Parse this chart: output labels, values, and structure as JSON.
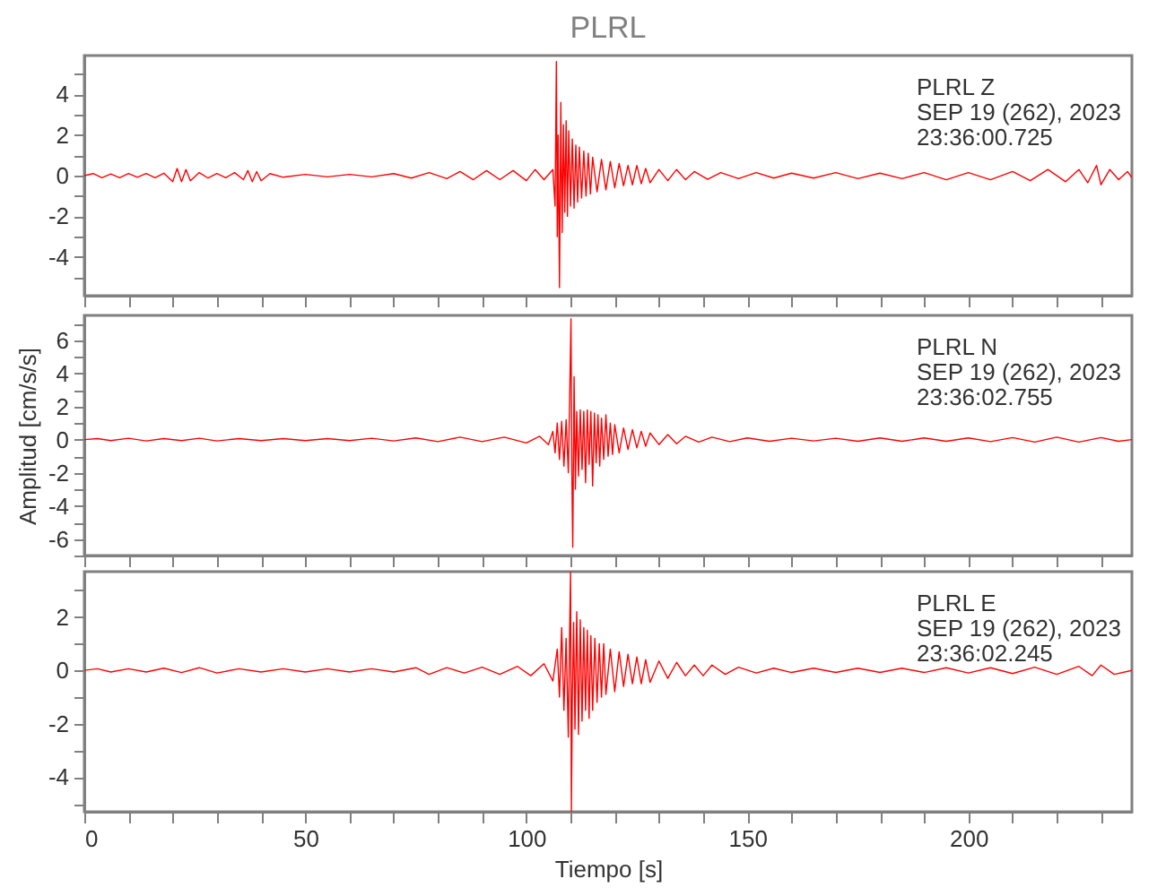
{
  "chart_data": [
    {
      "type": "line",
      "title": "PLRL",
      "color": "#ff0000",
      "grid": false,
      "tick_labels": "y",
      "annotations": [
        "PLRL   Z",
        "SEP 19 (262), 2023",
        "23:36:00.725"
      ],
      "xlim": [
        0,
        237
      ],
      "xticks": [
        0,
        {
          "value": 10,
          "label": null
        },
        {
          "value": 20,
          "label": null
        },
        {
          "value": 30,
          "label": null
        },
        {
          "value": 40,
          "label": null
        },
        50,
        {
          "value": 60,
          "label": null
        },
        {
          "value": 70,
          "label": null
        },
        {
          "value": 80,
          "label": null
        },
        {
          "value": 90,
          "label": null
        },
        100,
        {
          "value": 110,
          "label": null
        },
        {
          "value": 120,
          "label": null
        },
        {
          "value": 130,
          "label": null
        },
        {
          "value": 140,
          "label": null
        },
        150,
        {
          "value": 160,
          "label": null
        },
        {
          "value": 170,
          "label": null
        },
        {
          "value": 180,
          "label": null
        },
        {
          "value": 190,
          "label": null
        },
        200,
        {
          "value": 210,
          "label": null
        },
        {
          "value": 220,
          "label": null
        },
        {
          "value": 230,
          "label": null
        }
      ],
      "ylim": [
        -5.9,
        5.9
      ],
      "yticks": [
        {
          "value": -5,
          "label": null
        },
        -4,
        {
          "value": -3,
          "label": null
        },
        -2,
        {
          "value": -1,
          "label": null
        },
        0,
        {
          "value": 1,
          "label": null
        },
        2,
        {
          "value": 3,
          "label": null
        },
        4,
        {
          "value": 5,
          "label": null
        }
      ],
      "x": [
        0,
        2,
        4,
        6,
        8,
        10,
        12,
        14,
        16,
        18,
        20,
        21,
        22,
        23,
        24,
        26,
        28,
        30,
        32,
        34,
        36,
        37,
        38,
        39,
        40,
        42,
        45,
        50,
        55,
        60,
        65,
        70,
        74,
        78,
        82,
        85,
        88,
        91,
        94,
        97,
        100,
        102,
        104,
        106,
        106.5,
        106.8,
        107,
        107.2,
        107.5,
        107.8,
        108.1,
        108.4,
        108.7,
        109,
        109.3,
        109.6,
        110,
        110.4,
        110.8,
        111.2,
        111.6,
        112,
        112.5,
        113,
        113.5,
        114,
        114.5,
        115,
        116,
        117,
        118,
        119,
        120,
        121,
        122,
        123,
        124,
        125,
        126,
        127,
        128,
        130,
        132,
        134,
        136,
        138,
        141,
        144,
        148,
        152,
        156,
        160,
        165,
        170,
        175,
        180,
        185,
        190,
        195,
        200,
        205,
        210,
        214,
        218,
        222,
        225,
        227,
        229,
        230,
        232,
        234,
        236,
        237
      ],
      "values": [
        0,
        0.1,
        -0.1,
        0.08,
        -0.1,
        0.1,
        -0.08,
        0.1,
        -0.1,
        0.12,
        -0.3,
        0.35,
        -0.3,
        0.3,
        -0.25,
        0.15,
        -0.12,
        0.1,
        -0.1,
        0.15,
        -0.2,
        0.25,
        -0.3,
        0.2,
        -0.25,
        0.1,
        -0.08,
        0.06,
        -0.06,
        0.06,
        -0.06,
        0.1,
        -0.12,
        0.15,
        -0.15,
        0.2,
        -0.2,
        0.25,
        -0.2,
        0.25,
        -0.25,
        0.3,
        -0.2,
        0.3,
        -1.5,
        5.6,
        -3,
        2,
        -5.5,
        3.6,
        -2.8,
        2.5,
        -1.8,
        2.7,
        -2,
        2.2,
        -1.5,
        1.8,
        -1.6,
        1.5,
        -1.3,
        1.4,
        -1.1,
        1.2,
        -1,
        1.1,
        -0.9,
        0.9,
        -0.8,
        0.8,
        -0.7,
        0.7,
        -0.6,
        0.6,
        -0.5,
        0.5,
        -0.45,
        0.5,
        -0.4,
        0.35,
        -0.35,
        0.3,
        -0.25,
        0.3,
        -0.2,
        0.2,
        -0.18,
        0.15,
        -0.15,
        0.15,
        -0.12,
        0.12,
        -0.12,
        0.15,
        -0.15,
        0.12,
        -0.15,
        0.15,
        -0.2,
        0.15,
        -0.2,
        0.2,
        -0.25,
        0.3,
        -0.3,
        0.3,
        -0.35,
        0.5,
        -0.45,
        0.3,
        -0.2,
        0.2,
        -0.1
      ]
    },
    {
      "type": "line",
      "ylabel": "Amplitud [cm/s/s]",
      "color": "#ff0000",
      "grid": false,
      "tick_labels": "y",
      "annotations": [
        "PLRL   N",
        "SEP 19 (262), 2023",
        "23:36:02.755"
      ],
      "xlim": [
        0,
        237
      ],
      "xticks": [
        0,
        {
          "value": 10,
          "label": null
        },
        {
          "value": 20,
          "label": null
        },
        {
          "value": 30,
          "label": null
        },
        {
          "value": 40,
          "label": null
        },
        50,
        {
          "value": 60,
          "label": null
        },
        {
          "value": 70,
          "label": null
        },
        {
          "value": 80,
          "label": null
        },
        {
          "value": 90,
          "label": null
        },
        100,
        {
          "value": 110,
          "label": null
        },
        {
          "value": 120,
          "label": null
        },
        {
          "value": 130,
          "label": null
        },
        {
          "value": 140,
          "label": null
        },
        150,
        {
          "value": 160,
          "label": null
        },
        {
          "value": 170,
          "label": null
        },
        {
          "value": 180,
          "label": null
        },
        {
          "value": 190,
          "label": null
        },
        200,
        {
          "value": 210,
          "label": null
        },
        {
          "value": 220,
          "label": null
        },
        {
          "value": 230,
          "label": null
        }
      ],
      "ylim": [
        -7,
        7.5
      ],
      "yticks": [
        {
          "value": -7,
          "label": null
        },
        -6,
        {
          "value": -5,
          "label": null
        },
        -4,
        {
          "value": -3,
          "label": null
        },
        -2,
        {
          "value": -1,
          "label": null
        },
        0,
        {
          "value": 1,
          "label": null
        },
        2,
        {
          "value": 3,
          "label": null
        },
        4,
        {
          "value": 5,
          "label": null
        },
        6,
        {
          "value": 7,
          "label": null
        }
      ],
      "x": [
        0,
        3,
        6,
        10,
        14,
        18,
        22,
        26,
        30,
        35,
        40,
        45,
        50,
        55,
        60,
        65,
        70,
        75,
        80,
        85,
        90,
        95,
        100,
        103,
        105,
        106,
        106.5,
        107,
        107.5,
        108,
        108.5,
        109,
        109.5,
        109.8,
        110.1,
        110.3,
        110.5,
        110.8,
        111.1,
        111.4,
        111.8,
        112.2,
        112.6,
        113,
        113.4,
        113.8,
        114.2,
        114.6,
        115,
        115.4,
        115.8,
        116.2,
        116.6,
        117,
        117.5,
        118,
        118.5,
        119,
        119.5,
        120,
        121,
        122,
        123,
        124,
        125,
        126,
        127,
        128,
        130,
        132,
        134,
        136,
        139,
        142,
        146,
        150,
        155,
        160,
        165,
        170,
        175,
        180,
        185,
        190,
        195,
        200,
        205,
        210,
        215,
        220,
        225,
        230,
        234,
        237
      ],
      "values": [
        0,
        0.06,
        -0.06,
        0.08,
        -0.08,
        0.06,
        -0.06,
        0.08,
        -0.08,
        0.06,
        -0.06,
        0.06,
        -0.06,
        0.06,
        -0.06,
        0.08,
        -0.08,
        0.1,
        -0.12,
        0.15,
        -0.12,
        0.15,
        -0.2,
        0.2,
        -0.3,
        0.5,
        -0.8,
        1,
        -1.2,
        1.1,
        -1.6,
        1.2,
        -2,
        2.5,
        7.3,
        -2,
        -6.5,
        3.8,
        -3,
        1.7,
        -2.2,
        1.8,
        -1.8,
        1.7,
        -2.6,
        1.8,
        -1.5,
        1.7,
        -2.8,
        1.6,
        -1.4,
        1.5,
        -1.6,
        1.3,
        -1.2,
        1.5,
        -1,
        1,
        -0.9,
        0.9,
        -0.8,
        0.7,
        -0.6,
        0.6,
        -0.5,
        0.5,
        -0.4,
        0.4,
        -0.3,
        0.3,
        -0.25,
        0.2,
        -0.15,
        0.15,
        -0.12,
        0.1,
        -0.1,
        0.08,
        -0.08,
        0.08,
        -0.1,
        0.1,
        -0.1,
        0.1,
        -0.1,
        0.1,
        -0.12,
        0.12,
        -0.15,
        0.15,
        -0.15,
        0.12,
        -0.1,
        0
      ]
    },
    {
      "type": "line",
      "xlabel": "Tiempo [s]",
      "color": "#ff0000",
      "grid": false,
      "annotations": [
        "PLRL   E",
        "SEP 19 (262), 2023",
        "23:36:02.245"
      ],
      "xlim": [
        0,
        237
      ],
      "xticks": [
        0,
        {
          "value": 10,
          "label": null
        },
        {
          "value": 20,
          "label": null
        },
        {
          "value": 30,
          "label": null
        },
        {
          "value": 40,
          "label": null
        },
        50,
        {
          "value": 60,
          "label": null
        },
        {
          "value": 70,
          "label": null
        },
        {
          "value": 80,
          "label": null
        },
        {
          "value": 90,
          "label": null
        },
        100,
        {
          "value": 110,
          "label": null
        },
        {
          "value": 120,
          "label": null
        },
        {
          "value": 130,
          "label": null
        },
        {
          "value": 140,
          "label": null
        },
        150,
        {
          "value": 160,
          "label": null
        },
        {
          "value": 170,
          "label": null
        },
        {
          "value": 180,
          "label": null
        },
        {
          "value": 190,
          "label": null
        },
        200,
        {
          "value": 210,
          "label": null
        },
        {
          "value": 220,
          "label": null
        },
        {
          "value": 230,
          "label": null
        }
      ],
      "ylim": [
        -5.3,
        3.7
      ],
      "yticks": [
        {
          "value": -5,
          "label": null
        },
        -4,
        {
          "value": -3,
          "label": null
        },
        -2,
        {
          "value": -1,
          "label": null
        },
        0,
        {
          "value": 1,
          "label": null
        },
        2,
        {
          "value": 3,
          "label": null
        }
      ],
      "x": [
        0,
        3,
        6,
        10,
        14,
        18,
        22,
        26,
        30,
        35,
        40,
        45,
        50,
        55,
        60,
        65,
        70,
        75,
        78,
        82,
        86,
        90,
        94,
        98,
        101,
        104,
        106,
        107,
        107.5,
        108,
        108.5,
        109,
        109.5,
        109.8,
        110,
        110.2,
        110.4,
        110.7,
        111,
        111.4,
        111.8,
        112.2,
        112.6,
        113,
        113.4,
        113.8,
        114.2,
        114.6,
        115,
        115.5,
        116,
        116.5,
        117,
        117.5,
        118,
        119,
        120,
        121,
        122,
        123,
        124,
        125,
        126,
        127,
        128,
        130,
        132,
        134,
        136,
        138,
        140,
        142,
        145,
        148,
        152,
        156,
        160,
        165,
        170,
        175,
        180,
        185,
        190,
        195,
        200,
        205,
        210,
        215,
        220,
        225,
        228,
        230,
        233,
        237
      ],
      "values": [
        0,
        0.06,
        -0.06,
        0.06,
        -0.06,
        0.08,
        -0.08,
        0.1,
        -0.1,
        0.06,
        -0.06,
        0.06,
        -0.06,
        0.06,
        -0.06,
        0.06,
        -0.06,
        0.1,
        -0.15,
        0.1,
        -0.1,
        0.12,
        -0.15,
        0.15,
        -0.2,
        0.25,
        -0.4,
        0.8,
        -1,
        1.6,
        -1.5,
        1.2,
        -2.5,
        1.5,
        3.7,
        -5.3,
        -1,
        1.8,
        -2.2,
        2.2,
        -2.4,
        1.9,
        -1.9,
        1.6,
        -1.5,
        1.5,
        -1.8,
        1.3,
        -1.5,
        1.2,
        -1.2,
        1,
        -1,
        1,
        -0.9,
        0.8,
        -0.8,
        0.7,
        -0.6,
        0.6,
        -0.5,
        0.5,
        -0.5,
        0.4,
        -0.45,
        0.35,
        -0.3,
        0.3,
        -0.2,
        0.2,
        -0.2,
        0.2,
        -0.15,
        0.12,
        -0.1,
        0.08,
        -0.08,
        0.08,
        -0.08,
        0.08,
        -0.08,
        0.08,
        -0.08,
        0.1,
        -0.1,
        0.1,
        -0.12,
        0.12,
        -0.15,
        0.15,
        -0.2,
        0.2,
        -0.15,
        0
      ]
    }
  ]
}
